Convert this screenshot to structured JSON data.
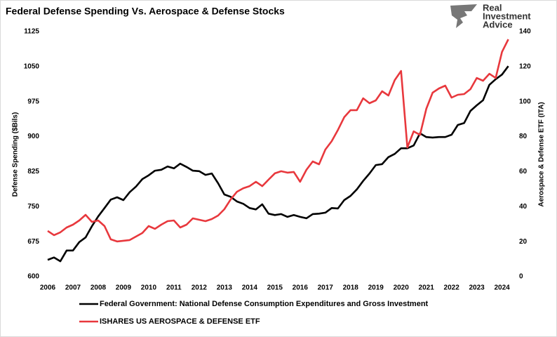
{
  "logo": {
    "lines": [
      "Real",
      "Investment",
      "Advice"
    ]
  },
  "chart_data": {
    "type": "line",
    "title": "Federal Defense Spending Vs. Aerospace & Defense Stocks",
    "y_label": "Defense Spending ($Bils)",
    "y2_label": "Aerospace & Defense ETF (ITA)",
    "x": [
      2006,
      2006.25,
      2006.5,
      2006.75,
      2007,
      2007.25,
      2007.5,
      2007.75,
      2008,
      2008.25,
      2008.5,
      2008.75,
      2009,
      2009.25,
      2009.5,
      2009.75,
      2010,
      2010.25,
      2010.5,
      2010.75,
      2011,
      2011.25,
      2011.5,
      2011.75,
      2012,
      2012.25,
      2012.5,
      2012.75,
      2013,
      2013.25,
      2013.5,
      2013.75,
      2014,
      2014.25,
      2014.5,
      2014.75,
      2015,
      2015.25,
      2015.5,
      2015.75,
      2016,
      2016.25,
      2016.5,
      2016.75,
      2017,
      2017.25,
      2017.5,
      2017.75,
      2018,
      2018.25,
      2018.5,
      2018.75,
      2019,
      2019.25,
      2019.5,
      2019.75,
      2020,
      2020.25,
      2020.5,
      2020.75,
      2021,
      2021.25,
      2021.5,
      2021.75,
      2022,
      2022.25,
      2022.5,
      2022.75,
      2023,
      2023.25,
      2023.5,
      2023.75,
      2024,
      2024.25
    ],
    "series": [
      {
        "name": "Federal Government: National Defense Consumption Expenditures and Gross Investment",
        "color": "#000000",
        "axis": "y",
        "values": [
          636,
          641,
          633,
          656,
          656,
          674,
          684,
          708,
          729,
          747,
          765,
          770,
          764,
          781,
          793,
          809,
          817,
          827,
          829,
          836,
          832,
          842,
          835,
          827,
          826,
          818,
          821,
          800,
          776,
          771,
          761,
          756,
          747,
          744,
          755,
          735,
          732,
          734,
          728,
          732,
          728,
          725,
          734,
          735,
          737,
          747,
          746,
          764,
          773,
          787,
          805,
          821,
          839,
          841,
          856,
          863,
          875,
          875,
          881,
          907,
          899,
          898,
          899,
          899,
          904,
          925,
          929,
          955,
          967,
          978,
          1011,
          1023,
          1033,
          1051
        ]
      },
      {
        "name": "ISHARES US AEROSPACE & DEFENSE ETF",
        "color": "#e8383d",
        "axis": "y2",
        "values": [
          26.1,
          23.7,
          25.3,
          28.1,
          29.7,
          32.1,
          35.3,
          31.3,
          32.1,
          28.9,
          21.3,
          20.1,
          20.5,
          20.9,
          22.9,
          24.9,
          28.9,
          27.3,
          29.7,
          31.7,
          32.1,
          28.1,
          29.7,
          33.3,
          32.5,
          31.7,
          32.9,
          34.9,
          38.5,
          44.1,
          48.5,
          50.5,
          51.7,
          54.2,
          51.7,
          55.4,
          59.0,
          60.2,
          59.4,
          59.8,
          54.2,
          61.0,
          65.8,
          64.2,
          72.6,
          77.4,
          83.8,
          91.1,
          95.1,
          95.1,
          101.9,
          99.1,
          100.7,
          105.9,
          103.5,
          112.3,
          117.5,
          73.8,
          83.0,
          81.0,
          95.9,
          105.1,
          107.5,
          109.1,
          102.3,
          103.9,
          104.3,
          107.1,
          113.5,
          111.9,
          115.9,
          113.5,
          128.4,
          135.6
        ]
      }
    ],
    "xlim": [
      2006,
      2024.4
    ],
    "xticks": [
      2006,
      2007,
      2008,
      2009,
      2010,
      2011,
      2012,
      2013,
      2014,
      2015,
      2016,
      2017,
      2018,
      2019,
      2020,
      2021,
      2022,
      2023,
      2024
    ],
    "ylim": [
      600,
      1125
    ],
    "yticks": [
      600,
      675,
      750,
      825,
      900,
      975,
      1050,
      1125
    ],
    "y2lim": [
      0,
      140
    ],
    "y2ticks": [
      0,
      20,
      40,
      60,
      80,
      100,
      120,
      140
    ],
    "grid": false,
    "legend": "bottom"
  }
}
